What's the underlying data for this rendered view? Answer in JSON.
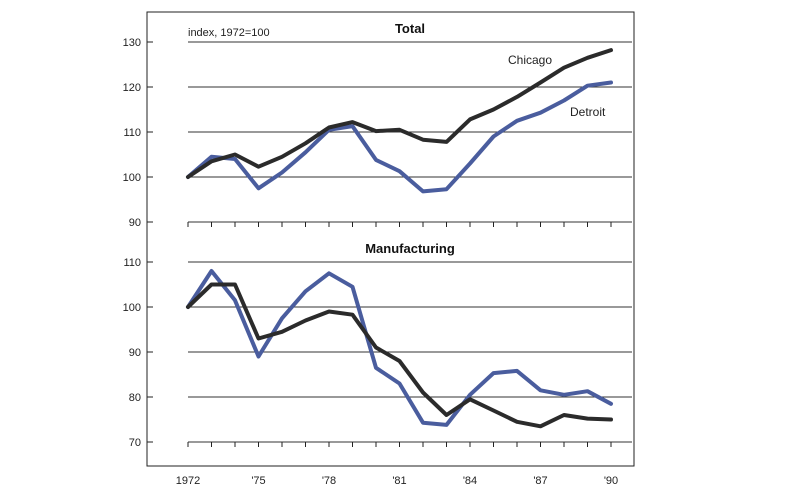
{
  "chart_data": [
    {
      "type": "line",
      "title": "Total",
      "note": "index, 1972=100",
      "x": [
        1972,
        1973,
        1974,
        1975,
        1976,
        1977,
        1978,
        1979,
        1980,
        1981,
        1982,
        1983,
        1984,
        1985,
        1986,
        1987,
        1988,
        1989,
        1990
      ],
      "ylim": [
        90,
        130
      ],
      "yticks": [
        90,
        100,
        110,
        120,
        130
      ],
      "series": [
        {
          "name": "Chicago",
          "color": "#2b2b2b",
          "values": [
            100,
            103.5,
            105,
            102.3,
            104.5,
            107.5,
            111,
            112.2,
            110.2,
            110.5,
            108.3,
            107.8,
            112.8,
            115,
            117.8,
            121,
            124.3,
            126.5,
            128.2
          ]
        },
        {
          "name": "Detroit",
          "color": "#4a5d9e",
          "values": [
            100,
            104.5,
            104,
            97.5,
            101,
            105.5,
            110.5,
            111.3,
            103.8,
            101.3,
            96.8,
            97.3,
            103,
            109,
            112.5,
            114.3,
            117,
            120.3,
            121
          ]
        }
      ]
    },
    {
      "type": "line",
      "title": "Manufacturing",
      "x": [
        1972,
        1973,
        1974,
        1975,
        1976,
        1977,
        1978,
        1979,
        1980,
        1981,
        1982,
        1983,
        1984,
        1985,
        1986,
        1987,
        1988,
        1989,
        1990
      ],
      "ylim": [
        70,
        110
      ],
      "yticks": [
        70,
        80,
        90,
        100,
        110
      ],
      "series": [
        {
          "name": "Chicago",
          "color": "#2b2b2b",
          "values": [
            100,
            105,
            105,
            93,
            94.5,
            97,
            99,
            98.3,
            91,
            88,
            81,
            76,
            79.5,
            77,
            74.5,
            73.5,
            76,
            75.2,
            75
          ]
        },
        {
          "name": "Detroit",
          "color": "#4a5d9e",
          "values": [
            100,
            108,
            101.5,
            89,
            97.5,
            103.5,
            107.5,
            104.5,
            86.5,
            83,
            74.3,
            73.8,
            80.5,
            85.3,
            85.8,
            81.5,
            80.5,
            81.3,
            78.5
          ]
        }
      ]
    }
  ],
  "x_axis": {
    "tick_labels": [
      {
        "x": 1972,
        "label": "1972"
      },
      {
        "x": 1975,
        "label": "'75"
      },
      {
        "x": 1978,
        "label": "'78"
      },
      {
        "x": 1981,
        "label": "'81"
      },
      {
        "x": 1984,
        "label": "'84"
      },
      {
        "x": 1987,
        "label": "'87"
      },
      {
        "x": 1990,
        "label": "'90"
      }
    ],
    "range": [
      1972,
      1990
    ]
  },
  "grid": true,
  "frame_color": "#222222"
}
